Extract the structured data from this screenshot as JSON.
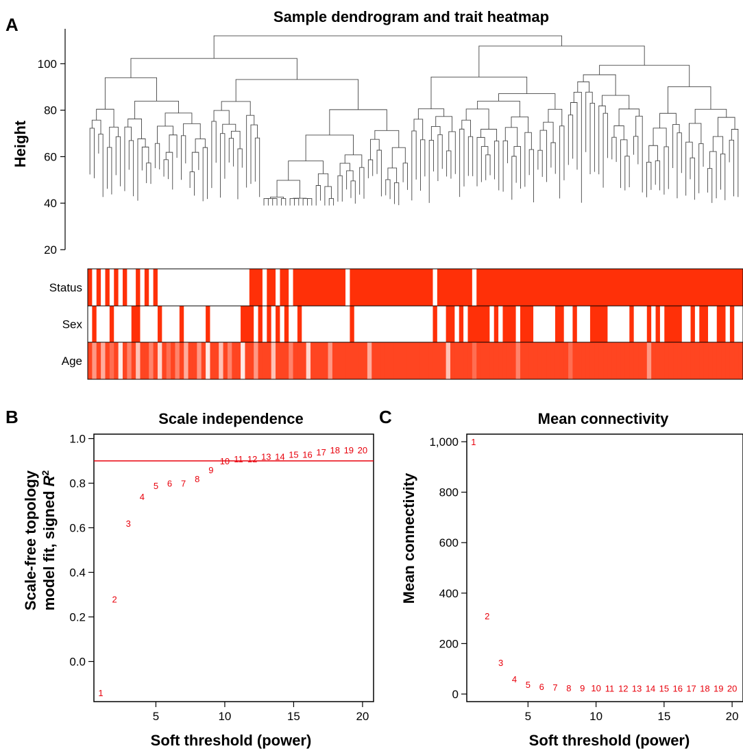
{
  "chart_data": [
    {
      "panel": "A",
      "type": "heatmap",
      "title": "Sample dendrogram and trait heatmap",
      "ylabel": "Height",
      "ylim": [
        20,
        115
      ],
      "yticks": [
        20,
        40,
        60,
        80,
        100
      ],
      "traits": [
        {
          "name": "Status",
          "values": [
            1,
            0,
            1,
            0,
            1,
            0,
            1,
            0,
            1,
            0,
            0,
            1,
            0,
            1,
            0,
            1,
            0,
            0,
            0,
            0,
            0,
            0,
            0,
            0,
            0,
            0,
            0,
            0,
            0,
            0,
            0,
            0,
            0,
            0,
            0,
            0,
            0,
            1,
            1,
            1,
            0,
            1,
            1,
            0,
            1,
            1,
            0,
            1,
            1,
            1,
            1,
            1,
            1,
            1,
            1,
            1,
            1,
            1,
            1,
            0,
            1,
            1,
            1,
            1,
            1,
            1,
            1,
            1,
            1,
            1,
            1,
            1,
            1,
            1,
            1,
            1,
            1,
            1,
            1,
            0,
            1,
            1,
            1,
            1,
            1,
            1,
            1,
            1,
            0,
            1,
            1,
            1,
            1,
            1,
            1,
            1,
            1,
            1,
            1,
            1,
            1,
            1,
            1,
            1,
            1,
            1,
            1,
            1,
            1,
            1,
            1,
            1,
            1,
            1,
            1,
            1,
            1,
            1,
            1,
            1,
            1,
            1,
            1,
            1,
            1,
            1,
            1,
            1,
            1,
            1,
            1,
            1,
            1,
            1,
            1,
            1,
            1,
            1,
            1,
            1,
            1,
            1,
            1,
            1,
            1,
            1,
            1,
            1,
            1,
            1
          ]
        },
        {
          "name": "Sex",
          "values": [
            0,
            1,
            0,
            0,
            0,
            1,
            0,
            0,
            0,
            0,
            1,
            1,
            0,
            0,
            0,
            0,
            1,
            0,
            0,
            0,
            0,
            1,
            0,
            0,
            0,
            0,
            0,
            1,
            0,
            0,
            0,
            0,
            0,
            0,
            0,
            1,
            1,
            1,
            0,
            1,
            0,
            1,
            0,
            1,
            0,
            1,
            0,
            0,
            1,
            0,
            0,
            0,
            0,
            0,
            0,
            0,
            0,
            0,
            0,
            0,
            1,
            0,
            0,
            0,
            0,
            0,
            0,
            0,
            0,
            0,
            0,
            0,
            0,
            0,
            0,
            0,
            0,
            0,
            0,
            1,
            0,
            0,
            1,
            1,
            0,
            1,
            0,
            1,
            1,
            1,
            1,
            1,
            0,
            1,
            0,
            1,
            1,
            1,
            0,
            1,
            1,
            1,
            0,
            0,
            0,
            0,
            0,
            1,
            1,
            0,
            0,
            1,
            0,
            0,
            0,
            1,
            1,
            1,
            1,
            0,
            0,
            0,
            0,
            0,
            1,
            0,
            0,
            0,
            1,
            0,
            1,
            0,
            1,
            1,
            1,
            1,
            0,
            0,
            1,
            0,
            1,
            1,
            0,
            0,
            1,
            1,
            0,
            1,
            0,
            0
          ]
        },
        {
          "name": "Age",
          "values": [
            0.9,
            0.5,
            0.9,
            0.4,
            0.9,
            0.7,
            0.9,
            0.1,
            0.9,
            0.6,
            0.9,
            0.3,
            0.9,
            0.9,
            0.6,
            0.9,
            0.2,
            0.9,
            0.7,
            0.9,
            0.6,
            0.9,
            0.4,
            0.9,
            0.9,
            0.5,
            0.9,
            0.1,
            0.9,
            0.9,
            0.3,
            0.9,
            0.6,
            0.9,
            0.9,
            0.1,
            0.9,
            0.9,
            0.5,
            0.9,
            0.9,
            0.9,
            0.3,
            0.9,
            0.9,
            0.9,
            0.6,
            0.9,
            0.9,
            0.9,
            0.2,
            0.9,
            0.9,
            0.9,
            0.9,
            0.5,
            0.9,
            0.9,
            0.9,
            0.9,
            0.9,
            0.9,
            0.9,
            0.9,
            0.4,
            0.9,
            0.9,
            0.9,
            0.9,
            0.9,
            0.9,
            0.9,
            0.9,
            0.9,
            0.9,
            0.9,
            0.9,
            0.9,
            0.9,
            0.9,
            0.9,
            0.9,
            0.3,
            0.9,
            0.9,
            0.9,
            0.9,
            0.9,
            0.7,
            0.9,
            0.9,
            0.9,
            0.9,
            0.9,
            0.9,
            0.9,
            0.9,
            0.9,
            0.6,
            0.9,
            0.9,
            0.9,
            0.9,
            0.9,
            0.9,
            0.9,
            0.9,
            0.9,
            0.9,
            0.9,
            0.7,
            0.9,
            0.9,
            0.9,
            0.9,
            0.9,
            0.9,
            0.9,
            0.9,
            0.9,
            0.9,
            0.9,
            0.9,
            0.9,
            0.9,
            0.9,
            0.9,
            0.9,
            0.5,
            0.9,
            0.9,
            0.9,
            0.9,
            0.9,
            0.9,
            0.9,
            0.9,
            0.9,
            0.9,
            0.9,
            0.9,
            0.9,
            0.9,
            0.9,
            0.9,
            0.9,
            0.9,
            0.9,
            0.9,
            0.9
          ]
        }
      ]
    },
    {
      "panel": "B",
      "type": "scatter",
      "title": "Scale independence",
      "xlabel": "Soft threshold (power)",
      "ylabel_line1": "Scale-free topology",
      "ylabel_line2": "model fit, signed ",
      "ylabel_r": "R",
      "ylabel_sup": "2",
      "xlim": [
        0.5,
        20.8
      ],
      "ylim": [
        -0.18,
        1.02
      ],
      "xticks": [
        5,
        10,
        15,
        20
      ],
      "yticks": [
        0.0,
        0.2,
        0.4,
        0.6,
        0.8,
        1.0
      ],
      "ytick_labels": [
        "0.0",
        "0.2",
        "0.4",
        "0.6",
        "0.8",
        "1.0"
      ],
      "hline": 0.9,
      "line_color": "#e8000b",
      "x": [
        1,
        2,
        3,
        4,
        5,
        6,
        7,
        8,
        9,
        10,
        11,
        12,
        13,
        14,
        15,
        16,
        17,
        18,
        19,
        20
      ],
      "y": [
        -0.14,
        0.28,
        0.62,
        0.74,
        0.79,
        0.8,
        0.8,
        0.82,
        0.86,
        0.9,
        0.91,
        0.91,
        0.92,
        0.92,
        0.93,
        0.93,
        0.94,
        0.95,
        0.95,
        0.95
      ],
      "labels": [
        "1",
        "2",
        "3",
        "4",
        "5",
        "6",
        "7",
        "8",
        "9",
        "10",
        "11",
        "12",
        "13",
        "14",
        "15",
        "16",
        "17",
        "18",
        "19",
        "20"
      ]
    },
    {
      "panel": "C",
      "type": "scatter",
      "title": "Mean connectivity",
      "xlabel": "Soft threshold (power)",
      "ylabel": "Mean connectivity",
      "xlim": [
        0.5,
        20.8
      ],
      "ylim": [
        -30,
        1030
      ],
      "xticks": [
        5,
        10,
        15,
        20
      ],
      "yticks": [
        0,
        200,
        400,
        600,
        800,
        1000
      ],
      "ytick_labels": [
        "0",
        "200",
        "400",
        "600",
        "800",
        "1,000"
      ],
      "x": [
        1,
        2,
        3,
        4,
        5,
        6,
        7,
        8,
        9,
        10,
        11,
        12,
        13,
        14,
        15,
        16,
        17,
        18,
        19,
        20
      ],
      "y": [
        1000,
        310,
        125,
        60,
        38,
        30,
        27,
        25,
        24,
        24,
        23,
        23,
        23,
        23,
        23,
        23,
        23,
        23,
        23,
        23
      ],
      "labels": [
        "1",
        "2",
        "3",
        "4",
        "5",
        "6",
        "7",
        "8",
        "9",
        "10",
        "11",
        "12",
        "13",
        "14",
        "15",
        "16",
        "17",
        "18",
        "19",
        "20"
      ]
    }
  ]
}
